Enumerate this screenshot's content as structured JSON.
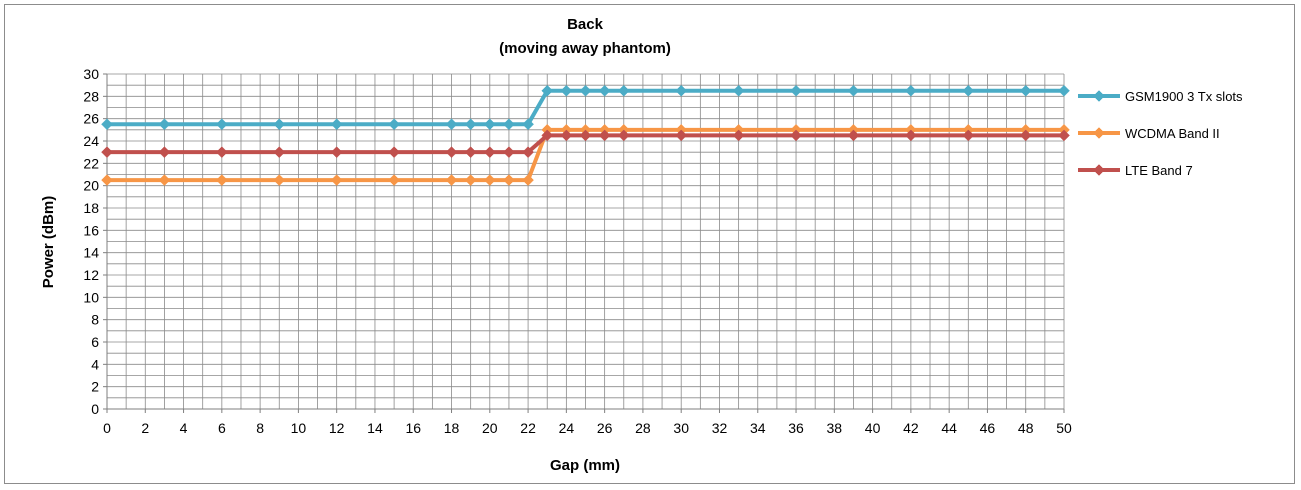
{
  "chart_data": {
    "type": "line",
    "title": "Back",
    "subtitle": "(moving away phantom)",
    "xlabel": "Gap (mm)",
    "ylabel": "Power (dBm)",
    "xlim": [
      0,
      50
    ],
    "ylim": [
      0,
      30
    ],
    "x_tick_step": 2,
    "y_tick_step": 2,
    "grid": true,
    "legend_position": "right",
    "x": [
      0,
      3,
      6,
      9,
      12,
      15,
      18,
      19,
      20,
      21,
      22,
      23,
      24,
      25,
      26,
      27,
      30,
      33,
      36,
      39,
      42,
      45,
      48,
      50
    ],
    "series": [
      {
        "name": "GSM1900 3 Tx slots",
        "color": "#4bacc6",
        "values": [
          25.5,
          25.5,
          25.5,
          25.5,
          25.5,
          25.5,
          25.5,
          25.5,
          25.5,
          25.5,
          25.5,
          28.5,
          28.5,
          28.5,
          28.5,
          28.5,
          28.5,
          28.5,
          28.5,
          28.5,
          28.5,
          28.5,
          28.5,
          28.5
        ]
      },
      {
        "name": "WCDMA Band II",
        "color": "#f79646",
        "values": [
          20.5,
          20.5,
          20.5,
          20.5,
          20.5,
          20.5,
          20.5,
          20.5,
          20.5,
          20.5,
          20.5,
          25.0,
          25.0,
          25.0,
          25.0,
          25.0,
          25.0,
          25.0,
          25.0,
          25.0,
          25.0,
          25.0,
          25.0,
          25.0
        ]
      },
      {
        "name": "LTE Band 7",
        "color": "#c0504d",
        "values": [
          23.0,
          23.0,
          23.0,
          23.0,
          23.0,
          23.0,
          23.0,
          23.0,
          23.0,
          23.0,
          23.0,
          24.5,
          24.5,
          24.5,
          24.5,
          24.5,
          24.5,
          24.5,
          24.5,
          24.5,
          24.5,
          24.5,
          24.5,
          24.5
        ]
      }
    ]
  }
}
